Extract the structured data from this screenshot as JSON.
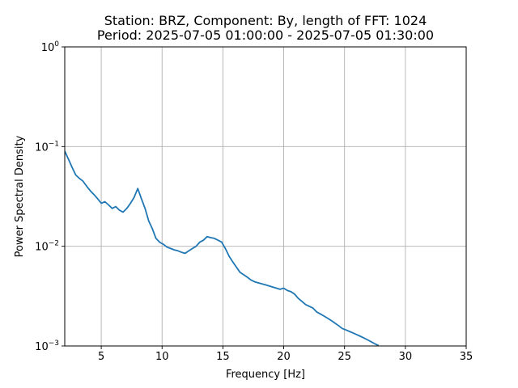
{
  "chart_data": {
    "type": "line",
    "title_line1": "Station: BRZ, Component: By, length of FFT: 1024",
    "title_line2": "Period: 2025-07-05 01:00:00 - 2025-07-05 01:30:00",
    "xlabel": "Frequency [Hz]",
    "ylabel": "Power Spectral Density",
    "xlim": [
      2,
      35
    ],
    "ylim": [
      0.001,
      1
    ],
    "yscale": "log",
    "grid": true,
    "x_ticks": [
      5,
      10,
      15,
      20,
      25,
      30,
      35
    ],
    "x_tick_labels": [
      "5",
      "10",
      "15",
      "20",
      "25",
      "30",
      "35"
    ],
    "y_ticks": [
      {
        "value": 1,
        "base": "10",
        "exp": "0"
      },
      {
        "value": 0.1,
        "base": "10",
        "exp": "−1"
      },
      {
        "value": 0.01,
        "base": "10",
        "exp": "−2"
      },
      {
        "value": 0.001,
        "base": "10",
        "exp": "−3"
      }
    ],
    "line_color": "#1f77b4",
    "series": [
      {
        "x": [
          2.0,
          2.3,
          2.6,
          2.9,
          3.2,
          3.5,
          3.8,
          4.1,
          4.4,
          4.7,
          5.0,
          5.3,
          5.6,
          5.9,
          6.2,
          6.5,
          6.8,
          7.1,
          7.4,
          7.7,
          8.0,
          8.3,
          8.6,
          8.9,
          9.2,
          9.5,
          9.8,
          10.1,
          10.4,
          10.7,
          11.0,
          11.3,
          11.6,
          11.9,
          12.2,
          12.5,
          12.8,
          13.1,
          13.4,
          13.7,
          14.0,
          14.3,
          14.6,
          14.9,
          15.2,
          15.5,
          15.8,
          16.1,
          16.4,
          16.7,
          17.0,
          17.3,
          17.6,
          17.9,
          18.2,
          18.5,
          18.8,
          19.1,
          19.4,
          19.7,
          20.0,
          20.3,
          20.6,
          20.9,
          21.2,
          21.5,
          21.8,
          22.1,
          22.4,
          22.7,
          23.0,
          23.3,
          23.6,
          23.9,
          24.2,
          24.5,
          24.8,
          25.1,
          25.4,
          25.7,
          26.0,
          26.3,
          26.6,
          26.9,
          27.2,
          27.5,
          27.8
        ],
        "y": [
          0.09,
          0.075,
          0.062,
          0.052,
          0.048,
          0.045,
          0.04,
          0.036,
          0.033,
          0.03,
          0.027,
          0.028,
          0.026,
          0.024,
          0.025,
          0.023,
          0.022,
          0.024,
          0.027,
          0.031,
          0.038,
          0.03,
          0.024,
          0.018,
          0.015,
          0.012,
          0.011,
          0.0105,
          0.0098,
          0.0095,
          0.0092,
          0.009,
          0.0087,
          0.0085,
          0.009,
          0.0095,
          0.01,
          0.011,
          0.0115,
          0.0125,
          0.0122,
          0.012,
          0.0115,
          0.011,
          0.0095,
          0.008,
          0.007,
          0.0062,
          0.0055,
          0.0052,
          0.0049,
          0.0046,
          0.0044,
          0.0043,
          0.0042,
          0.0041,
          0.004,
          0.0039,
          0.0038,
          0.0037,
          0.0038,
          0.0036,
          0.0035,
          0.0033,
          0.003,
          0.0028,
          0.0026,
          0.0025,
          0.0024,
          0.0022,
          0.0021,
          0.002,
          0.0019,
          0.0018,
          0.0017,
          0.0016,
          0.0015,
          0.00145,
          0.0014,
          0.00135,
          0.0013,
          0.00125,
          0.0012,
          0.00115,
          0.0011,
          0.00105,
          0.00101
        ]
      }
    ]
  }
}
